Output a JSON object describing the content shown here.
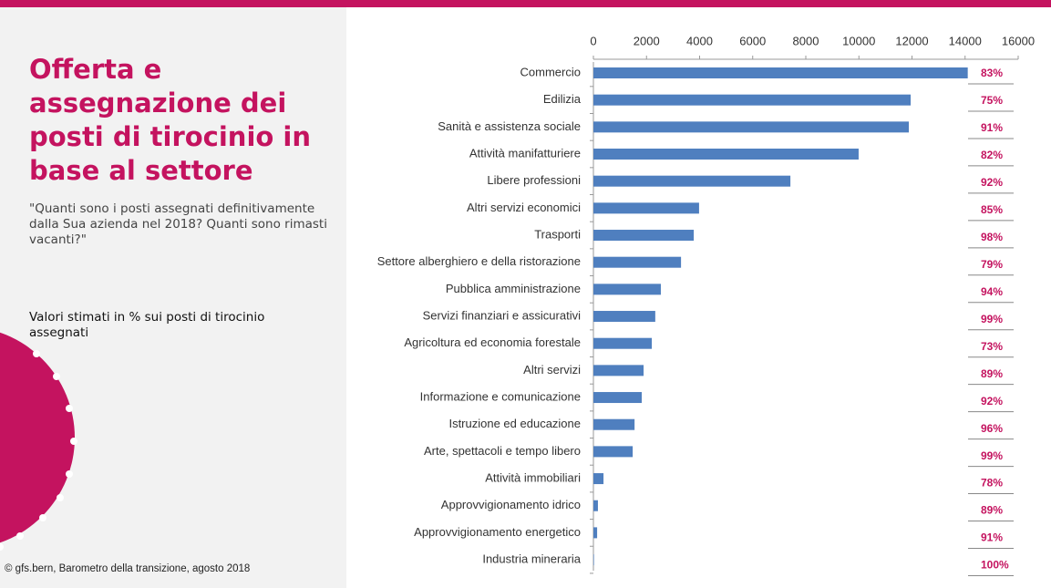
{
  "header": {
    "title": "Offerta e assegnazione dei posti di tirocinio in base al settore",
    "subtitle": "\"Quanti sono i posti assegnati definitivamente dalla Sua azienda nel 2018? Quanti sono rimasti vacanti?\"",
    "note": "Valori stimati in % sui posti di tirocinio assegnati",
    "source": "© gfs.bern, Barometro della transizione, agosto 2018"
  },
  "chart_data": {
    "type": "hbar",
    "color": "#4f7fbf",
    "categories": [
      "Commercio",
      "Edilizia",
      "Sanità e assistenza sociale",
      "Attività manifatturiere",
      "Libere professioni",
      "Altri servizi economici",
      "Trasporti",
      "Settore alberghiero e della ristorazione",
      "Pubblica amministrazione",
      "Servizi finanziari e assicurativi",
      "Agricoltura ed economia forestale",
      "Altri servizi",
      "Informazione e comunicazione",
      "Istruzione ed educazione",
      "Arte, spettacoli e tempo libero",
      "Attività immobiliari",
      "Approvvigionamento idrico",
      "Approvvigionamento energetico",
      "Industria mineraria"
    ],
    "values": [
      14100,
      11950,
      11880,
      9990,
      7420,
      3980,
      3780,
      3300,
      2540,
      2330,
      2200,
      1890,
      1820,
      1550,
      1480,
      380,
      170,
      140,
      20
    ],
    "share_labels": [
      "83%",
      "75%",
      "91%",
      "82%",
      "92%",
      "85%",
      "98%",
      "79%",
      "94%",
      "99%",
      "73%",
      "89%",
      "92%",
      "96%",
      "99%",
      "78%",
      "89%",
      "91%",
      "100%"
    ],
    "xlim": [
      0,
      16000
    ],
    "xticks": [
      0,
      2000,
      4000,
      6000,
      8000,
      10000,
      12000,
      14000,
      16000
    ]
  }
}
